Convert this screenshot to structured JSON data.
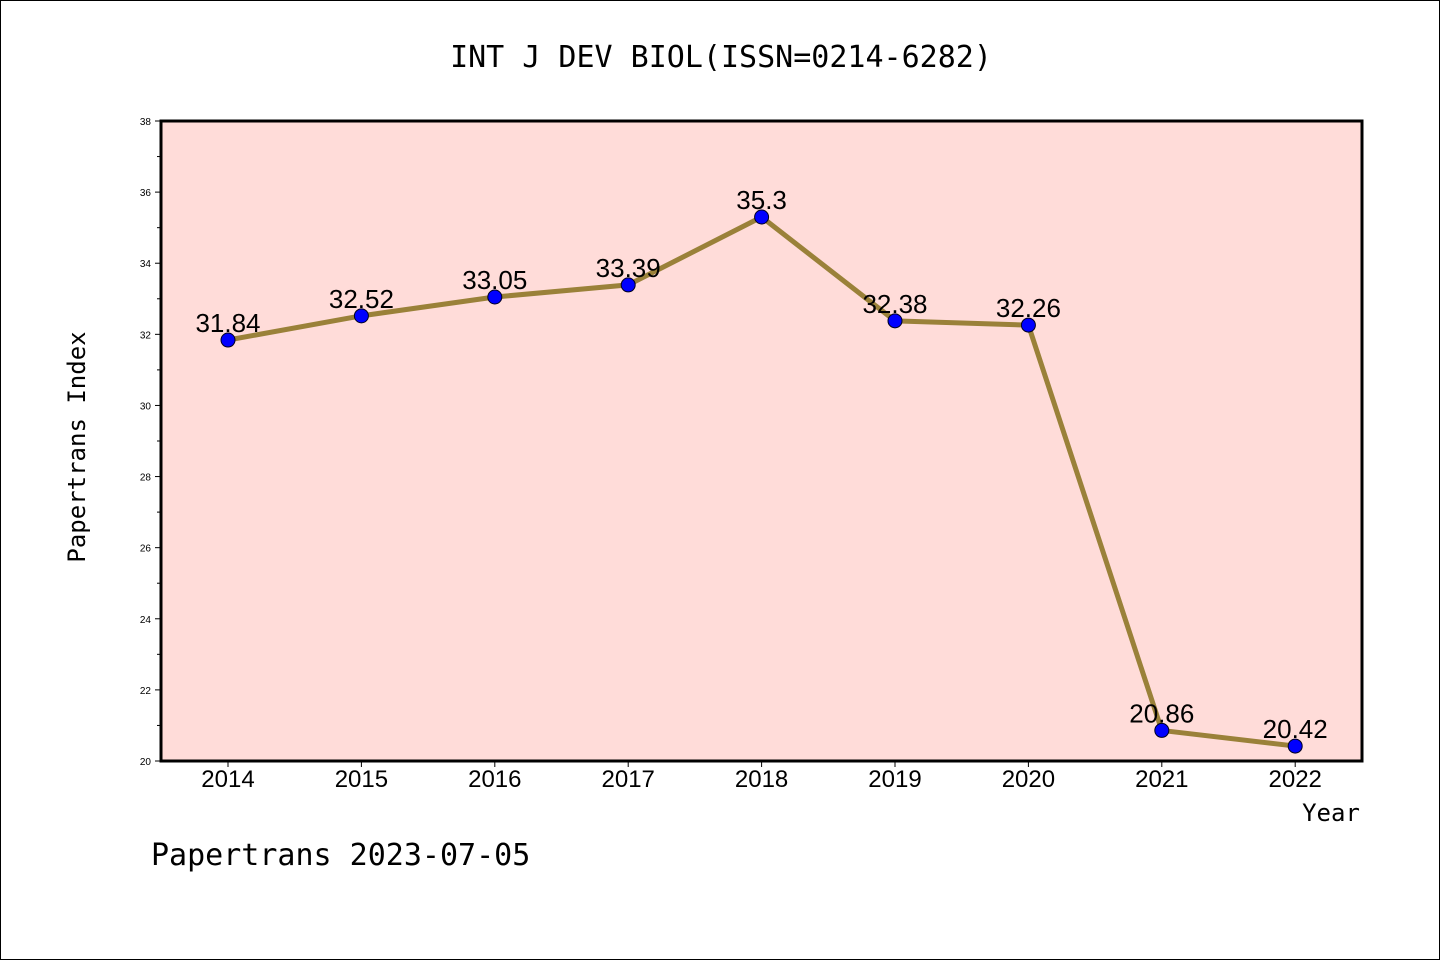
{
  "chart_data": {
    "type": "line",
    "title": "INT J DEV BIOL(ISSN=0214-6282)",
    "xlabel": "Year",
    "ylabel": "Papertrans Index",
    "categories": [
      "2014",
      "2015",
      "2016",
      "2017",
      "2018",
      "2019",
      "2020",
      "2021",
      "2022"
    ],
    "values": [
      31.84,
      32.52,
      33.05,
      33.39,
      35.3,
      32.38,
      32.26,
      20.86,
      20.42
    ],
    "data_labels": [
      "31.84",
      "32.52",
      "33.05",
      "33.39",
      "35.3",
      "32.38",
      "32.26",
      "20.86",
      "20.42"
    ],
    "ylim": [
      20,
      38
    ],
    "yticks": [
      20,
      22,
      24,
      26,
      28,
      30,
      32,
      34,
      36,
      38
    ],
    "grid": false,
    "colors": {
      "plot_background": "#ffdcd9",
      "line": "#9a8139",
      "marker": "#0000ff"
    }
  },
  "footer": "Papertrans 2023-07-05"
}
